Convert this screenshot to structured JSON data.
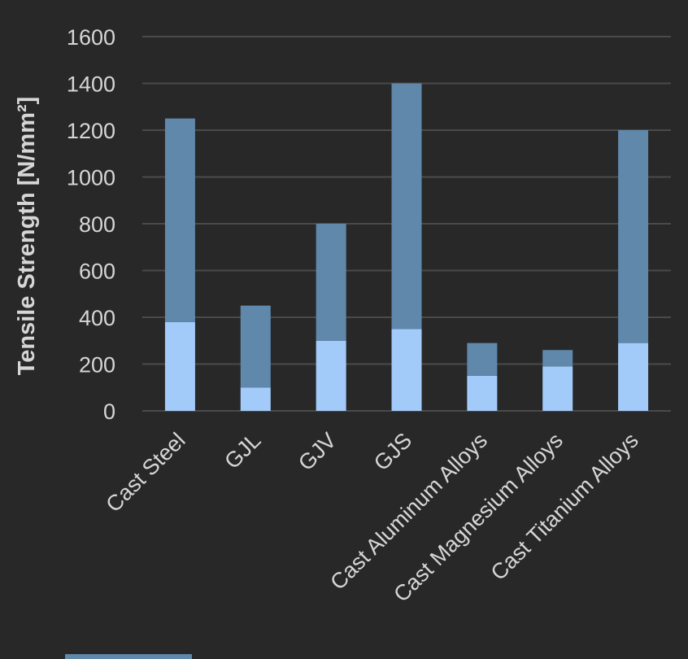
{
  "chart_data": {
    "type": "bar",
    "stacked": true,
    "categories": [
      "Cast Steel",
      "GJL",
      "GJV",
      "GJS",
      "Cast Aluminum Alloys",
      "Cast Magnesium Alloys",
      "Cast Titanium Alloys"
    ],
    "series": [
      {
        "color": "#a3cbfa",
        "values": [
          380,
          100,
          300,
          350,
          150,
          190,
          290
        ]
      },
      {
        "color": "#5f88ab",
        "values": [
          870,
          350,
          500,
          1050,
          140,
          70,
          910
        ]
      }
    ],
    "ylabel": "Tensile Strength [N/mm²]",
    "xlabel": "",
    "ylim": [
      0,
      1600
    ],
    "yticks": [
      0,
      200,
      400,
      600,
      800,
      1000,
      1200,
      1400,
      1600
    ],
    "grid": true,
    "legend": "bottom",
    "colors": {
      "background": "#282828",
      "grid": "#4a4a4a",
      "text": "#d6d6d6"
    }
  }
}
